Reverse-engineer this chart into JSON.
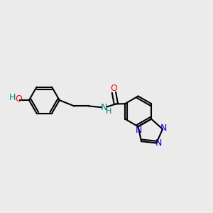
{
  "bg_color": "#ebebeb",
  "bond_color": "#000000",
  "bond_width": 1.5,
  "atom_colors": {
    "O": "#ff0000",
    "N": "#0000ff",
    "N_tet": "#0000cd",
    "H_gray": "#008080",
    "C": "#000000"
  },
  "font_size_atoms": 9,
  "font_size_small": 8
}
